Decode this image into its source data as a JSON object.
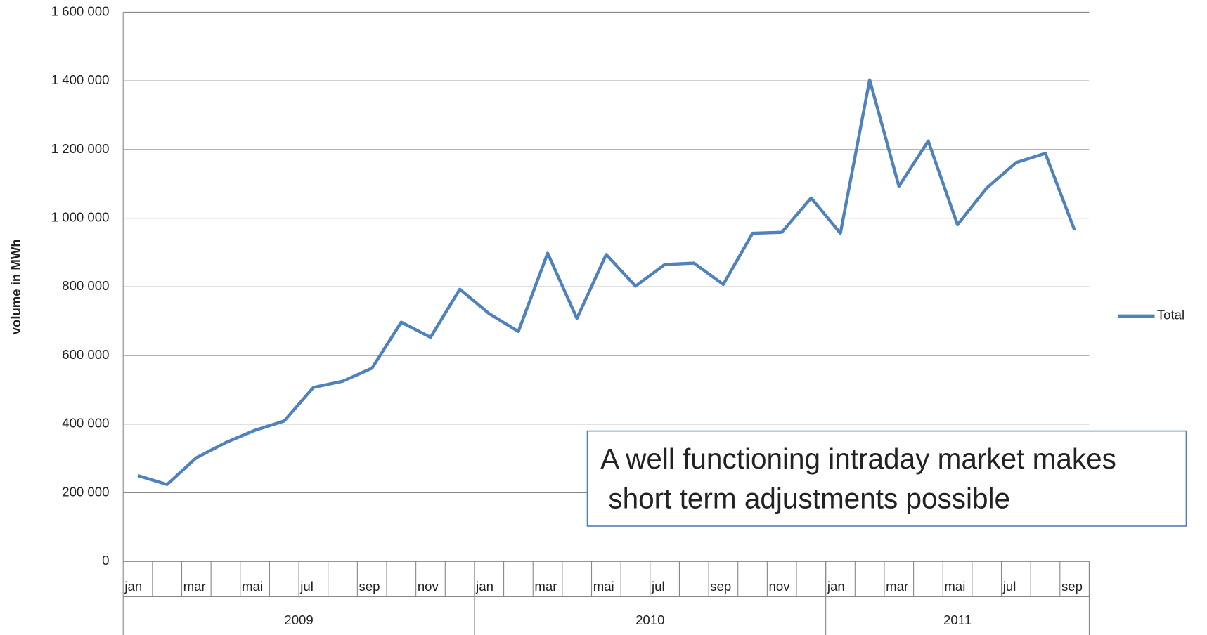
{
  "chart_data": {
    "type": "line",
    "y_label": "volume in MWh",
    "categories": [
      "jan",
      null,
      "mar",
      null,
      "mai",
      null,
      "jul",
      null,
      "sep",
      null,
      "nov",
      null,
      "jan",
      null,
      "mar",
      null,
      "mai",
      null,
      "jul",
      null,
      "sep",
      null,
      "nov",
      null,
      "jan",
      null,
      "mar",
      null,
      "mai",
      null,
      "jul",
      null,
      "sep"
    ],
    "years": [
      "2009",
      "2010",
      "2011"
    ],
    "series": [
      {
        "name": "Total",
        "color": "#4f81bd",
        "values": [
          250000,
          224000,
          302000,
          346000,
          382000,
          409000,
          507000,
          525000,
          563000,
          697000,
          653000,
          793000,
          722000,
          670000,
          898000,
          708000,
          894000,
          802000,
          865000,
          869000,
          807000,
          956000,
          959000,
          1059000,
          956000,
          1403000,
          1093000,
          1225000,
          981000,
          1088000,
          1162000,
          1189000,
          965000
        ]
      }
    ],
    "ylim": [
      0,
      1600000
    ],
    "yticks": [
      0,
      {
        "value": 200000,
        "label": "200 000"
      },
      {
        "value": 400000,
        "label": "400 000"
      },
      {
        "value": 600000,
        "label": "600 000"
      },
      {
        "value": 800000,
        "label": "800 000"
      },
      {
        "value": 1000000,
        "label": "1 000 000"
      },
      {
        "value": 1200000,
        "label": "1 200 000"
      },
      {
        "value": 1400000,
        "label": "1 400 000"
      },
      {
        "value": 1600000,
        "label": "1 600 000"
      }
    ],
    "grid": true,
    "legend": "right",
    "annotation": [
      "A well functioning intraday market makes",
      " short term adjustments possible"
    ]
  }
}
